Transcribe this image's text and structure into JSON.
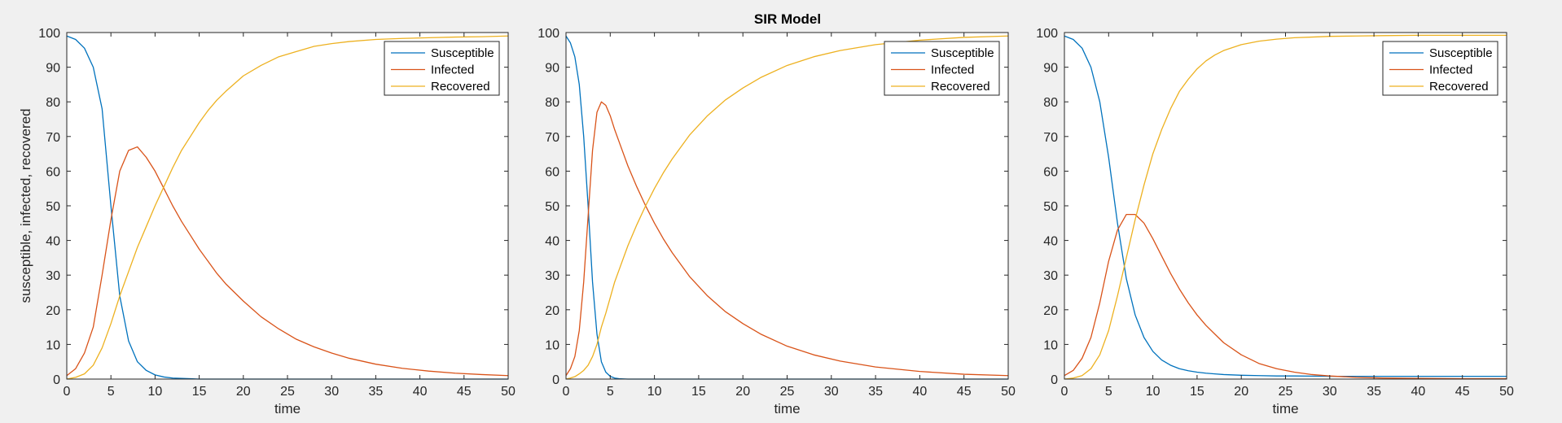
{
  "figure": {
    "title": "SIR Model"
  },
  "colors": {
    "susceptible": "#0072BD",
    "infected": "#D95319",
    "recovered": "#EDB120",
    "axis": "#262626",
    "background": "#f0f0f0",
    "plot_background": "#ffffff"
  },
  "chart_data": [
    {
      "type": "line",
      "title": "SIR Model",
      "xlabel": "time",
      "ylabel": "susceptible, infected, recovered",
      "xlim": [
        0,
        50
      ],
      "ylim": [
        0,
        100
      ],
      "xticks": [
        0,
        5,
        10,
        15,
        20,
        25,
        30,
        35,
        40,
        45,
        50
      ],
      "yticks": [
        0,
        10,
        20,
        30,
        40,
        50,
        60,
        70,
        80,
        90,
        100
      ],
      "legend": "top-right",
      "grid": false,
      "x": [
        0,
        1,
        2,
        3,
        4,
        5,
        6,
        7,
        8,
        9,
        10,
        11,
        12,
        13,
        14,
        15,
        16,
        17,
        18,
        20,
        22,
        24,
        26,
        28,
        30,
        32,
        35,
        38,
        41,
        44,
        47,
        50
      ],
      "series": [
        {
          "name": "Susceptible",
          "color": "#0072BD",
          "values": [
            99,
            98,
            95.5,
            90,
            78,
            50,
            24,
            11,
            5,
            2.5,
            1.2,
            0.6,
            0.3,
            0.2,
            0.1,
            0,
            0,
            0,
            0,
            0,
            0,
            0,
            0,
            0,
            0,
            0,
            0,
            0,
            0,
            0,
            0,
            0
          ]
        },
        {
          "name": "Infected",
          "color": "#D95319",
          "values": [
            1,
            3,
            7.5,
            15,
            30,
            46,
            60,
            66,
            67,
            64,
            60,
            55,
            50,
            45.5,
            41.5,
            37.5,
            34,
            30.5,
            27.5,
            22.5,
            18,
            14.5,
            11.5,
            9.3,
            7.5,
            6,
            4.3,
            3.1,
            2.3,
            1.7,
            1.3,
            1
          ]
        },
        {
          "name": "Recovered",
          "color": "#EDB120",
          "values": [
            0,
            0.5,
            1.5,
            4,
            9,
            16,
            24,
            31,
            38,
            44,
            50,
            55.5,
            61,
            66,
            70,
            74,
            77.5,
            80.5,
            83,
            87.5,
            90.5,
            93,
            94.5,
            96,
            96.8,
            97.4,
            98,
            98.3,
            98.5,
            98.7,
            98.8,
            99
          ]
        }
      ]
    },
    {
      "type": "line",
      "title": "",
      "xlabel": "time",
      "ylabel": "",
      "xlim": [
        0,
        50
      ],
      "ylim": [
        0,
        100
      ],
      "xticks": [
        0,
        5,
        10,
        15,
        20,
        25,
        30,
        35,
        40,
        45,
        50
      ],
      "yticks": [
        0,
        10,
        20,
        30,
        40,
        50,
        60,
        70,
        80,
        90,
        100
      ],
      "legend": "top-right",
      "grid": false,
      "x": [
        0,
        0.5,
        1,
        1.5,
        2,
        2.5,
        3,
        3.5,
        4,
        4.5,
        5,
        5.5,
        6,
        7,
        8,
        9,
        10,
        11,
        12,
        14,
        16,
        18,
        20,
        22,
        25,
        28,
        31,
        35,
        40,
        45,
        50
      ],
      "series": [
        {
          "name": "Susceptible",
          "color": "#0072BD",
          "values": [
            99,
            97,
            93,
            85,
            70,
            50,
            28,
            13,
            5,
            2,
            0.8,
            0.3,
            0.1,
            0,
            0,
            0,
            0,
            0,
            0,
            0,
            0,
            0,
            0,
            0,
            0,
            0,
            0,
            0,
            0,
            0,
            0
          ]
        },
        {
          "name": "Infected",
          "color": "#D95319",
          "values": [
            1,
            3,
            6.5,
            14,
            28,
            47,
            66,
            77,
            80,
            79,
            76,
            72,
            68.5,
            61.5,
            55.5,
            50,
            45,
            40.5,
            36.5,
            29.5,
            24,
            19.5,
            16,
            13,
            9.5,
            7,
            5.2,
            3.5,
            2.2,
            1.4,
            1
          ]
        },
        {
          "name": "Recovered",
          "color": "#EDB120",
          "values": [
            0,
            0.3,
            0.7,
            1.5,
            2.5,
            4,
            6.5,
            10,
            15,
            19,
            23.5,
            28,
            31.5,
            38.5,
            44.5,
            50,
            55,
            59.5,
            63.5,
            70.5,
            76,
            80.5,
            84,
            87,
            90.5,
            93,
            94.8,
            96.5,
            97.8,
            98.6,
            99
          ]
        }
      ]
    },
    {
      "type": "line",
      "title": "",
      "xlabel": "time",
      "ylabel": "",
      "xlim": [
        0,
        50
      ],
      "ylim": [
        0,
        100
      ],
      "xticks": [
        0,
        5,
        10,
        15,
        20,
        25,
        30,
        35,
        40,
        45,
        50
      ],
      "yticks": [
        0,
        10,
        20,
        30,
        40,
        50,
        60,
        70,
        80,
        90,
        100
      ],
      "legend": "top-right",
      "grid": false,
      "x": [
        0,
        1,
        2,
        3,
        4,
        5,
        6,
        7,
        8,
        9,
        10,
        11,
        12,
        13,
        14,
        15,
        16,
        17,
        18,
        20,
        22,
        24,
        26,
        28,
        30,
        33,
        36,
        40,
        45,
        50
      ],
      "series": [
        {
          "name": "Susceptible",
          "color": "#0072BD",
          "values": [
            99,
            98,
            95.5,
            90,
            80,
            64,
            45,
            29,
            18.5,
            12,
            8,
            5.5,
            4,
            3,
            2.4,
            2,
            1.7,
            1.5,
            1.3,
            1.1,
            1,
            0.9,
            0.9,
            0.85,
            0.8,
            0.8,
            0.8,
            0.8,
            0.8,
            0.8
          ]
        },
        {
          "name": "Infected",
          "color": "#D95319",
          "values": [
            1,
            2.5,
            6,
            12,
            22,
            34,
            43,
            47.5,
            47.5,
            45,
            40.5,
            35.5,
            30.5,
            26,
            22,
            18.5,
            15.5,
            13,
            10.5,
            7,
            4.5,
            3,
            2,
            1.3,
            0.9,
            0.5,
            0.3,
            0.2,
            0.1,
            0.1
          ]
        },
        {
          "name": "Recovered",
          "color": "#EDB120",
          "values": [
            0,
            0.3,
            1,
            3,
            7,
            14,
            24,
            35,
            46,
            56,
            65,
            72,
            78,
            83,
            86.5,
            89.5,
            91.8,
            93.5,
            94.8,
            96.5,
            97.5,
            98.1,
            98.5,
            98.7,
            98.9,
            99,
            99.1,
            99.2,
            99.2,
            99.2
          ]
        }
      ]
    }
  ]
}
